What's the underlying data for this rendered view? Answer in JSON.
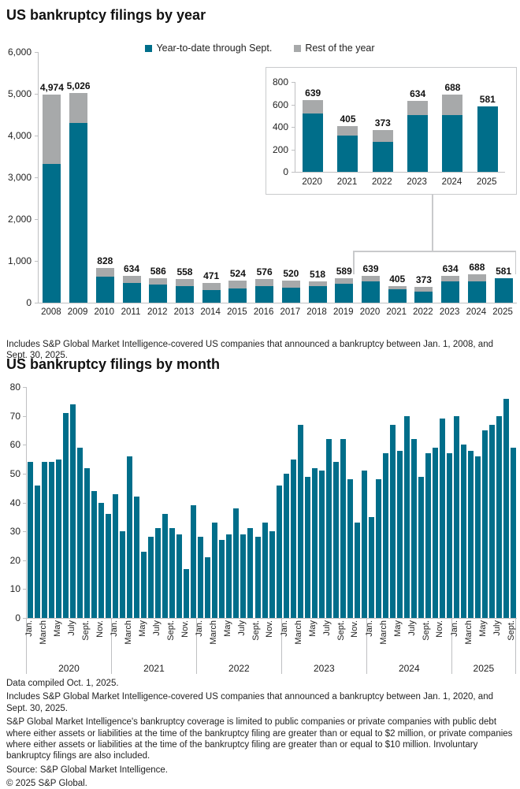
{
  "colors": {
    "teal": "#006e8a",
    "gray": "#a7a9aa",
    "axis": "#bfc0c2",
    "callout": "#c9cacc",
    "text": "#1f1f1f"
  },
  "chart_data": [
    {
      "type": "bar",
      "stacked": true,
      "title": "US bankruptcy filings by year",
      "legend_position": "top",
      "gridlines": false,
      "categories": [
        "2008",
        "2009",
        "2010",
        "2011",
        "2012",
        "2013",
        "2014",
        "2015",
        "2016",
        "2017",
        "2018",
        "2019",
        "2020",
        "2021",
        "2022",
        "2023",
        "2024",
        "2025"
      ],
      "series": [
        {
          "name": "Year-to-date through Sept.",
          "color_key": "teal",
          "values": [
            3330,
            4310,
            625,
            465,
            430,
            395,
            310,
            345,
            390,
            365,
            395,
            445,
            519,
            320,
            264,
            502,
            503,
            581
          ]
        },
        {
          "name": "Rest of the year",
          "color_key": "gray",
          "values": [
            1644,
            716,
            203,
            169,
            156,
            163,
            161,
            179,
            186,
            155,
            123,
            144,
            120,
            85,
            109,
            132,
            185,
            0
          ]
        }
      ],
      "total_labels": [
        "4,974",
        "5,026",
        "828",
        "634",
        "586",
        "558",
        "471",
        "524",
        "576",
        "520",
        "518",
        "589",
        "639",
        "405",
        "373",
        "634",
        "688",
        "581"
      ],
      "ylim": [
        0,
        6000
      ],
      "yticks": [
        6000,
        5000,
        4000,
        3000,
        2000,
        1000,
        0
      ],
      "ytick_labels": [
        "6,000",
        "5,000",
        "4,000",
        "3,000",
        "2,000",
        "1,000",
        "0"
      ],
      "footnote": "Includes S&P Global Market Intelligence-covered US companies that announced a bankruptcy between Jan. 1, 2008, and Sept. 30, 2025.",
      "inset": {
        "type": "bar",
        "stacked": true,
        "categories": [
          "2020",
          "2021",
          "2022",
          "2023",
          "2024",
          "2025"
        ],
        "series": [
          {
            "name": "Year-to-date through Sept.",
            "color_key": "teal",
            "values": [
              519,
              320,
              264,
              502,
              503,
              581
            ]
          },
          {
            "name": "Rest of the year",
            "color_key": "gray",
            "values": [
              120,
              85,
              109,
              132,
              185,
              0
            ]
          }
        ],
        "total_labels": [
          "639",
          "405",
          "373",
          "634",
          "688",
          "581"
        ],
        "ylim": [
          0,
          800
        ],
        "yticks": [
          800,
          600,
          400,
          200,
          0
        ],
        "ytick_labels": [
          "800",
          "600",
          "400",
          "200",
          "0"
        ]
      }
    },
    {
      "type": "bar",
      "title": "US bankruptcy filings by month",
      "gridlines": false,
      "ylim": [
        0,
        80
      ],
      "yticks": [
        80,
        70,
        60,
        50,
        40,
        30,
        20,
        10,
        0
      ],
      "ytick_labels": [
        "80",
        "70",
        "60",
        "50",
        "40",
        "30",
        "20",
        "10",
        "0"
      ],
      "month_tick_labels": [
        "Jan.",
        "March",
        "May",
        "July",
        "Sept.",
        "Nov."
      ],
      "years": [
        {
          "year": "2020",
          "values": [
            54,
            46,
            54,
            54,
            55,
            71,
            74,
            59,
            52,
            44,
            40,
            36
          ]
        },
        {
          "year": "2021",
          "values": [
            43,
            30,
            56,
            42,
            23,
            28,
            31,
            36,
            31,
            29,
            17,
            39
          ]
        },
        {
          "year": "2022",
          "values": [
            28,
            21,
            33,
            27,
            29,
            38,
            29,
            31,
            28,
            33,
            30,
            46
          ]
        },
        {
          "year": "2023",
          "values": [
            50,
            55,
            67,
            49,
            52,
            51,
            62,
            54,
            62,
            48,
            33,
            51
          ]
        },
        {
          "year": "2024",
          "values": [
            35,
            48,
            57,
            67,
            58,
            70,
            62,
            49,
            57,
            59,
            69,
            57
          ]
        },
        {
          "year": "2025",
          "values": [
            70,
            60,
            58,
            56,
            65,
            67,
            70,
            76,
            59
          ]
        }
      ]
    }
  ],
  "footer": {
    "lines": [
      "Data compiled Oct. 1, 2025.",
      "Includes S&P Global Market Intelligence-covered US companies that announced a bankruptcy between Jan. 1, 2020, and Sept. 30, 2025.",
      "S&P Global Market Intelligence's bankruptcy coverage is limited to public companies or private companies with public debt where either assets or liabilities at the time of the bankruptcy filing are greater than or equal to $2 million, or private companies where either assets or liabilities at the time of the bankruptcy filing are greater than or equal to $10 million. Involuntary bankruptcy filings are also included.",
      "Source: S&P Global Market Intelligence.",
      "© 2025 S&P Global."
    ]
  }
}
